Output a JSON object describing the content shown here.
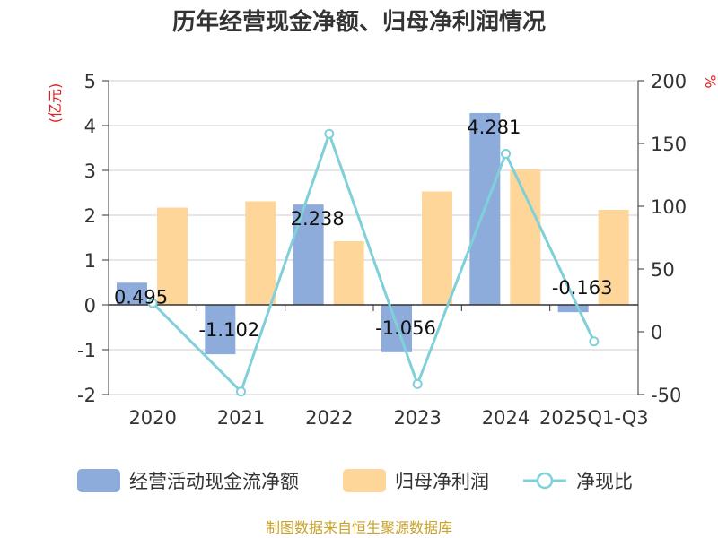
{
  "chart_data": {
    "type": "bar",
    "title": "历年经营现金净额、归母净利润情况",
    "categories": [
      "2020",
      "2021",
      "2022",
      "2023",
      "2024",
      "2025Q1-Q3"
    ],
    "series": [
      {
        "name": "经营活动现金流净额",
        "axis": "left",
        "kind": "bar",
        "color": "#8eacdb",
        "values": [
          0.495,
          -1.102,
          2.238,
          -1.056,
          4.281,
          -0.163
        ],
        "labels": [
          "0.495",
          "-1.102",
          "2.238",
          "-1.056",
          "4.281",
          "-0.163"
        ]
      },
      {
        "name": "归母净利润",
        "axis": "left",
        "kind": "bar",
        "color": "#fed69a",
        "values": [
          2.17,
          2.31,
          1.42,
          2.53,
          3.02,
          2.12
        ]
      },
      {
        "name": "净现比",
        "axis": "right",
        "kind": "line",
        "color": "#7fd0d8",
        "values": [
          22.8,
          -47.7,
          157.7,
          -41.7,
          141.8,
          -7.7
        ]
      }
    ],
    "yleft": {
      "label": "(亿元)",
      "min": -2,
      "max": 5,
      "ticks": [
        "5",
        "4",
        "3",
        "2",
        "1",
        "0",
        "-1",
        "-2"
      ],
      "tick_values": [
        5,
        4,
        3,
        2,
        1,
        0,
        -1,
        -2
      ]
    },
    "yright": {
      "label": "%",
      "min": -50,
      "max": 200,
      "ticks": [
        "200",
        "150",
        "100",
        "50",
        "0",
        "-50"
      ],
      "tick_values": [
        200,
        150,
        100,
        50,
        0,
        -50
      ]
    },
    "grid": true,
    "legend_position": "bottom",
    "label_color": "#e02020"
  },
  "source": {
    "text": "制图数据来自恒生聚源数据库",
    "color": "#c9a227"
  }
}
